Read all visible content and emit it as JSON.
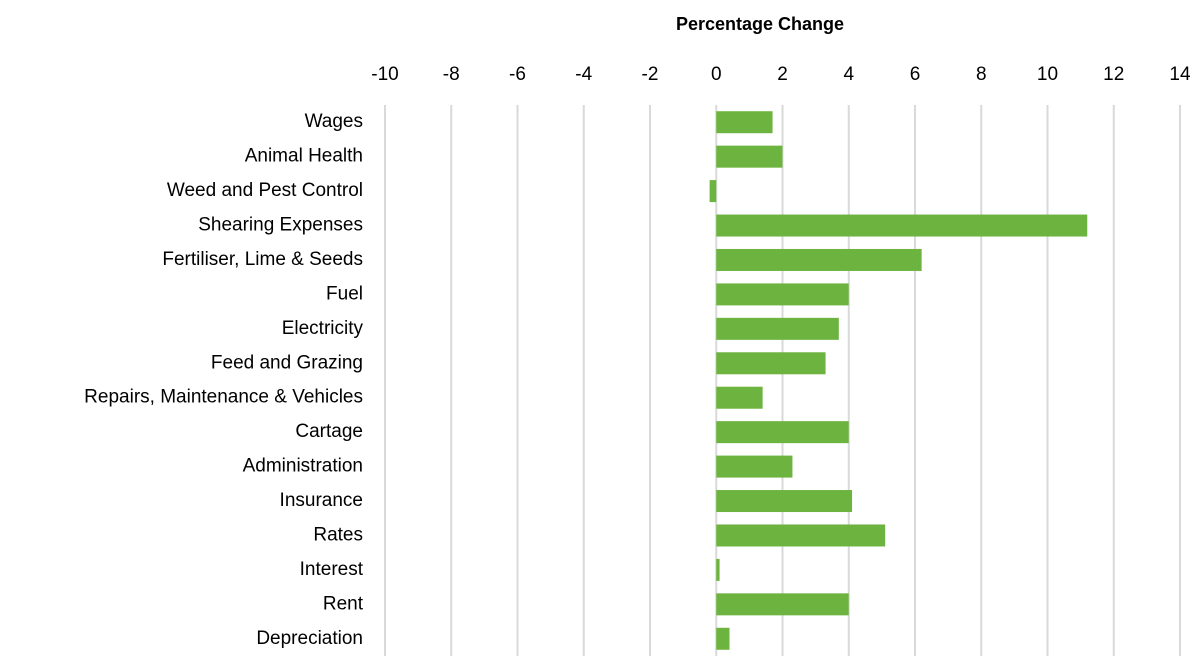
{
  "chart_data": {
    "type": "barh",
    "x_label": "Percentage Change",
    "categories": [
      "Wages",
      "Animal Health",
      "Weed and Pest Control",
      "Shearing Expenses",
      "Fertiliser, Lime & Seeds",
      "Fuel",
      "Electricity",
      "Feed and Grazing",
      "Repairs, Maintenance & Vehicles",
      "Cartage",
      "Administration",
      "Insurance",
      "Rates",
      "Interest",
      "Rent",
      "Depreciation"
    ],
    "values": [
      1.7,
      2.0,
      -0.2,
      11.2,
      6.2,
      4.0,
      3.7,
      3.3,
      1.4,
      4.0,
      2.3,
      4.1,
      5.1,
      0.1,
      4.0,
      0.4
    ],
    "color": "#6db33f",
    "xlim": [
      -10,
      14
    ],
    "xticks": [
      -10,
      -8,
      -6,
      -4,
      -2,
      0,
      2,
      4,
      6,
      8,
      10,
      12,
      14
    ],
    "grid": true
  }
}
